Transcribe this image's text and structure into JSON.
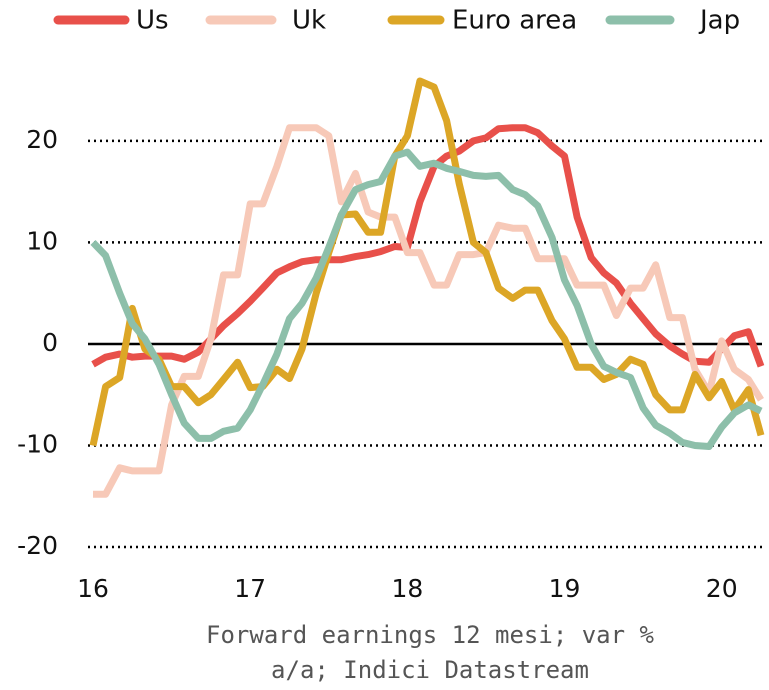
{
  "chart_data": {
    "type": "line",
    "caption": [
      "Forward earnings 12 mesi; var %",
      "a/a; Indici Datastream"
    ],
    "x": [
      16.0,
      16.08,
      16.17,
      16.25,
      16.33,
      16.42,
      16.5,
      16.58,
      16.67,
      16.75,
      16.83,
      16.92,
      17.0,
      17.08,
      17.17,
      17.25,
      17.33,
      17.42,
      17.5,
      17.58,
      17.67,
      17.75,
      17.83,
      17.92,
      18.0,
      18.08,
      18.17,
      18.25,
      18.33,
      18.42,
      18.5,
      18.58,
      18.67,
      18.75,
      18.83,
      18.92,
      19.0,
      19.08,
      19.17,
      19.25,
      19.33,
      19.42,
      19.5,
      19.58,
      19.67,
      19.75,
      19.83,
      19.92,
      20.0,
      20.08,
      20.17,
      20.25
    ],
    "series": [
      {
        "name": "Us",
        "color": "#e8504a",
        "values": [
          -2,
          -1.3,
          -1,
          -1.3,
          -1.2,
          -1.2,
          -1.2,
          -1.5,
          -0.8,
          0.5,
          1.8,
          3,
          4.2,
          5.5,
          7,
          7.6,
          8.1,
          8.3,
          8.3,
          8.3,
          8.6,
          8.8,
          9.1,
          9.6,
          9.5,
          14,
          17.5,
          18.5,
          19,
          20,
          20.3,
          21.2,
          21.3,
          21.3,
          20.8,
          19.5,
          18.5,
          12.5,
          8.5,
          7,
          6,
          4,
          2.5,
          1,
          -0.2,
          -1,
          -1.7,
          -1.8,
          -0.5,
          0.8,
          1.2,
          -2.2
        ]
      },
      {
        "name": "Uk",
        "color": "#f7c9b8",
        "values": [
          -14.8,
          -14.8,
          -12.2,
          -12.5,
          -12.5,
          -12.5,
          -6,
          -3.2,
          -3.2,
          0.5,
          6.8,
          6.8,
          13.8,
          13.8,
          17.5,
          21.3,
          21.3,
          21.3,
          20.5,
          14,
          16.8,
          13,
          12.5,
          12.5,
          9,
          9,
          5.8,
          5.8,
          8.8,
          8.8,
          9,
          11.7,
          11.4,
          11.4,
          8.4,
          8.4,
          8.4,
          5.8,
          5.8,
          5.8,
          2.8,
          5.5,
          5.5,
          7.8,
          2.6,
          2.6,
          -2.5,
          -4.8,
          0.3,
          -2.5,
          -3.5,
          -5.5
        ]
      },
      {
        "name": "Euro area",
        "color": "#dca626",
        "values": [
          -10,
          -4.2,
          -3.3,
          3.5,
          -0.5,
          -1.5,
          -4.2,
          -4.2,
          -5.8,
          -5,
          -3.5,
          -1.8,
          -4.3,
          -4.2,
          -2.5,
          -3.4,
          -0.5,
          5,
          9,
          12.7,
          12.8,
          11,
          11,
          18.5,
          20.5,
          25.9,
          25.3,
          22,
          15.8,
          10,
          9,
          5.5,
          4.5,
          5.3,
          5.3,
          2.3,
          0.5,
          -2.3,
          -2.3,
          -3.5,
          -3,
          -1.5,
          -2,
          -5,
          -6.5,
          -6.5,
          -3,
          -5.3,
          -3.7,
          -6.5,
          -4.5,
          -9
        ]
      },
      {
        "name": "Jap",
        "color": "#8dbfaa",
        "values": [
          10,
          8.7,
          5,
          2,
          0.5,
          -2,
          -5,
          -7.8,
          -9.3,
          -9.3,
          -8.6,
          -8.3,
          -6.5,
          -4,
          -1,
          2.5,
          4,
          6.5,
          9.5,
          12.7,
          15.2,
          15.7,
          16,
          18.5,
          18.9,
          17.5,
          17.8,
          17.3,
          17,
          16.6,
          16.5,
          16.6,
          15.2,
          14.7,
          13.6,
          10.5,
          6.3,
          3.8,
          0,
          -2.2,
          -2.8,
          -3.3,
          -6.3,
          -8,
          -8.8,
          -9.7,
          -10,
          -10.1,
          -8.2,
          -6.8,
          -6,
          -6.6
        ]
      }
    ],
    "xlim": [
      16,
      20.25
    ],
    "xticks": [
      16,
      17,
      18,
      19,
      20
    ],
    "ylim": [
      -20,
      26
    ],
    "yticks": [
      -20,
      -10,
      0,
      10,
      20
    ],
    "grid": true,
    "legend": "top"
  }
}
